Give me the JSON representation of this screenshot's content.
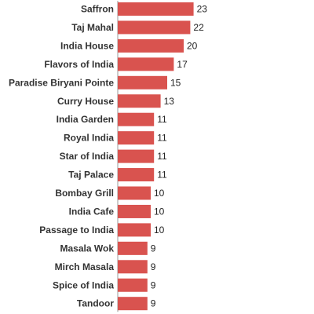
{
  "chart_data": {
    "type": "bar",
    "orientation": "horizontal",
    "categories": [
      "Saffron",
      "Taj Mahal",
      "India House",
      "Flavors of India",
      "Paradise Biryani Pointe",
      "Curry House",
      "India Garden",
      "Royal India",
      "Star of India",
      "Taj Palace",
      "Bombay Grill",
      "India Cafe",
      "Passage to India",
      "Masala Wok",
      "Mirch Masala",
      "Spice of India",
      "Tandoor"
    ],
    "values": [
      23,
      22,
      20,
      17,
      15,
      13,
      11,
      11,
      11,
      11,
      10,
      10,
      10,
      9,
      9,
      9,
      9
    ],
    "title": "",
    "xlabel": "",
    "ylabel": "",
    "xlim": [
      0,
      23
    ],
    "grid": false,
    "bar_color": "#d9534f"
  }
}
